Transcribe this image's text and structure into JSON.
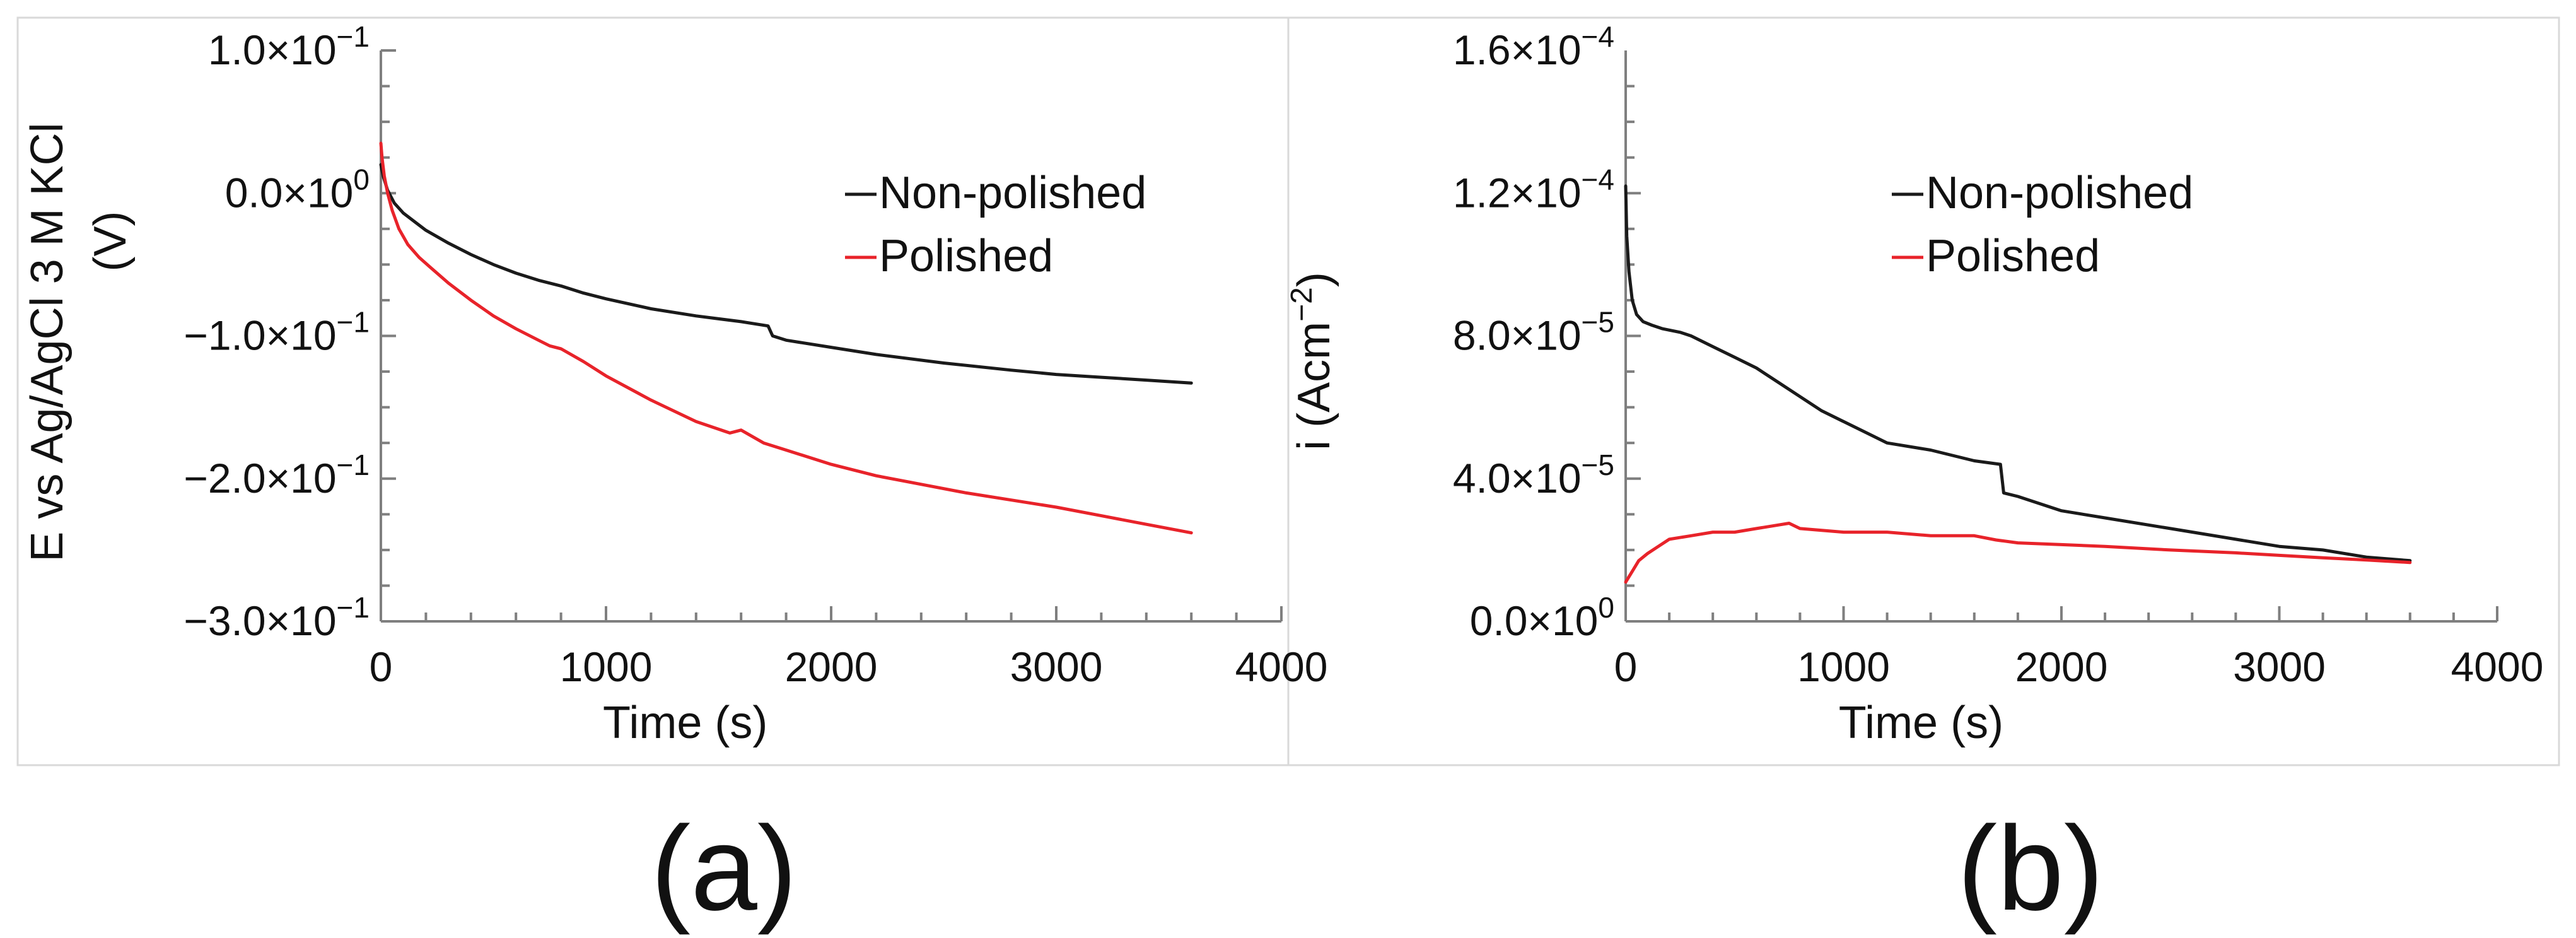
{
  "chart_data": [
    {
      "type": "line",
      "panel_label": "(a)",
      "title": "",
      "xlabel": "Time (s)",
      "ylabel_line1": "E vs Ag/AgCl 3 M KCl",
      "ylabel_line2": "(V)",
      "xlim": [
        0,
        4000
      ],
      "ylim": [
        -0.3,
        0.1
      ],
      "x_ticks": [
        0,
        1000,
        2000,
        3000,
        4000
      ],
      "x_tick_labels": [
        "0",
        "1000",
        "2000",
        "3000",
        "4000"
      ],
      "y_ticks": [
        0.1,
        0.0,
        -0.1,
        -0.2,
        -0.3
      ],
      "y_tick_labels": [
        {
          "mantissa": "1.0×10",
          "exp": "−1"
        },
        {
          "mantissa": "0.0×10",
          "exp": "0"
        },
        {
          "mantissa": "−1.0×10",
          "exp": "−1"
        },
        {
          "mantissa": "−2.0×10",
          "exp": "−1"
        },
        {
          "mantissa": "−3.0×10",
          "exp": "−1"
        }
      ],
      "legend_position": "top-right",
      "series": [
        {
          "name": "Non-polished",
          "color": "#1a1a1a",
          "x": [
            0,
            10,
            30,
            60,
            100,
            150,
            200,
            300,
            400,
            500,
            600,
            700,
            800,
            900,
            1000,
            1200,
            1400,
            1600,
            1720,
            1740,
            1800,
            2000,
            2200,
            2500,
            2800,
            3000,
            3200,
            3400,
            3600
          ],
          "y": [
            0.02,
            0.012,
            0.002,
            -0.007,
            -0.014,
            -0.02,
            -0.026,
            -0.035,
            -0.043,
            -0.05,
            -0.056,
            -0.061,
            -0.065,
            -0.07,
            -0.074,
            -0.081,
            -0.086,
            -0.09,
            -0.093,
            -0.1,
            -0.103,
            -0.108,
            -0.113,
            -0.119,
            -0.124,
            -0.127,
            -0.129,
            -0.131,
            -0.133
          ]
        },
        {
          "name": "Polished",
          "color": "#e8232a",
          "x": [
            0,
            5,
            15,
            30,
            50,
            80,
            120,
            170,
            220,
            300,
            400,
            500,
            600,
            700,
            750,
            800,
            900,
            1000,
            1200,
            1400,
            1550,
            1600,
            1700,
            1800,
            2000,
            2200,
            2400,
            2600,
            2800,
            3000,
            3200,
            3400,
            3600
          ],
          "y": [
            0.035,
            0.025,
            0.012,
            0.0,
            -0.012,
            -0.025,
            -0.036,
            -0.045,
            -0.052,
            -0.063,
            -0.075,
            -0.086,
            -0.095,
            -0.103,
            -0.107,
            -0.109,
            -0.118,
            -0.128,
            -0.145,
            -0.16,
            -0.168,
            -0.166,
            -0.175,
            -0.18,
            -0.19,
            -0.198,
            -0.204,
            -0.21,
            -0.215,
            -0.22,
            -0.226,
            -0.232,
            -0.238
          ]
        }
      ]
    },
    {
      "type": "line",
      "panel_label": "(b)",
      "title": "",
      "xlabel": "Time (s)",
      "ylabel_main": "i (Acm",
      "ylabel_sup": "−2",
      "ylabel_end": ")",
      "xlim": [
        0,
        4000
      ],
      "ylim": [
        0,
        0.00016
      ],
      "x_ticks": [
        0,
        1000,
        2000,
        3000,
        4000
      ],
      "x_tick_labels": [
        "0",
        "1000",
        "2000",
        "3000",
        "4000"
      ],
      "y_ticks": [
        0.00016,
        0.00012,
        8e-05,
        4e-05,
        0.0
      ],
      "y_tick_labels": [
        {
          "mantissa": "1.6×10",
          "exp": "−4"
        },
        {
          "mantissa": "1.2×10",
          "exp": "−4"
        },
        {
          "mantissa": "8.0×10",
          "exp": "−5"
        },
        {
          "mantissa": "4.0×10",
          "exp": "−5"
        },
        {
          "mantissa": "0.0×10",
          "exp": "0"
        }
      ],
      "legend_position": "top-right",
      "series": [
        {
          "name": "Non-polished",
          "color": "#1a1a1a",
          "x": [
            0,
            5,
            15,
            30,
            50,
            80,
            120,
            170,
            250,
            300,
            400,
            500,
            600,
            700,
            800,
            900,
            1000,
            1100,
            1200,
            1400,
            1600,
            1720,
            1735,
            1800,
            2000,
            2200,
            2500,
            2800,
            3000,
            3200,
            3400,
            3600
          ],
          "y": [
            0.000122,
            0.000108,
            9.8e-05,
            9e-05,
            8.6e-05,
            8.4e-05,
            8.3e-05,
            8.2e-05,
            8.1e-05,
            8e-05,
            7.7e-05,
            7.4e-05,
            7.1e-05,
            6.7e-05,
            6.3e-05,
            5.9e-05,
            5.6e-05,
            5.3e-05,
            5e-05,
            4.8e-05,
            4.5e-05,
            4.4e-05,
            3.6e-05,
            3.5e-05,
            3.1e-05,
            2.9e-05,
            2.6e-05,
            2.3e-05,
            2.1e-05,
            2e-05,
            1.8e-05,
            1.7e-05
          ]
        },
        {
          "name": "Polished",
          "color": "#e8232a",
          "x": [
            0,
            30,
            60,
            100,
            150,
            200,
            300,
            400,
            500,
            600,
            700,
            750,
            800,
            900,
            1000,
            1200,
            1400,
            1600,
            1700,
            1800,
            2000,
            2200,
            2500,
            2800,
            3000,
            3200,
            3400,
            3600
          ],
          "y": [
            1.1e-05,
            1.4e-05,
            1.7e-05,
            1.9e-05,
            2.1e-05,
            2.3e-05,
            2.4e-05,
            2.5e-05,
            2.5e-05,
            2.6e-05,
            2.7e-05,
            2.75e-05,
            2.6e-05,
            2.55e-05,
            2.5e-05,
            2.5e-05,
            2.4e-05,
            2.4e-05,
            2.28e-05,
            2.2e-05,
            2.15e-05,
            2.1e-05,
            2e-05,
            1.92e-05,
            1.85e-05,
            1.78e-05,
            1.72e-05,
            1.65e-05
          ]
        }
      ]
    }
  ]
}
